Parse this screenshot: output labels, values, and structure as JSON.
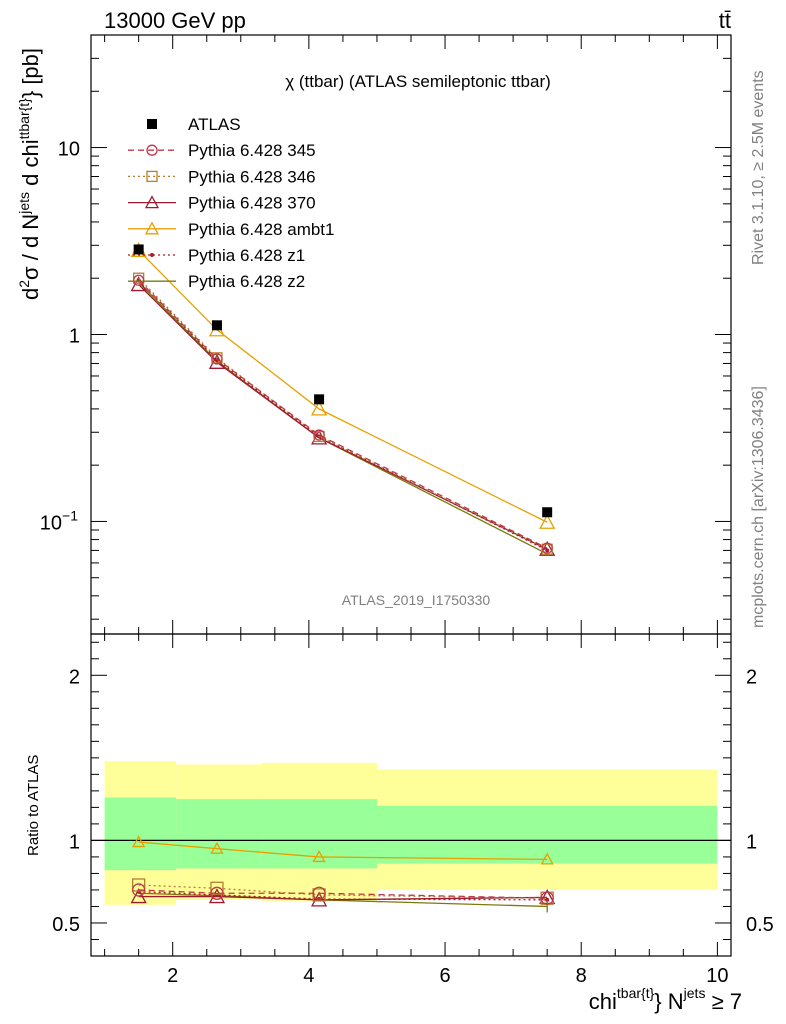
{
  "header": {
    "energy_label": "13000 GeV pp",
    "process_label": "tt̄"
  },
  "side_text": {
    "rivet": "Rivet 3.1.10, ≥ 2.5M events",
    "mcplots": "mcplots.cern.ch [arXiv:1306.3436]"
  },
  "chart_data": [
    {
      "type": "scatter",
      "panel": "main",
      "title": "χ (ttbar) (ATLAS semileptonic ttbar)",
      "ylabel": "d²σ / d N^jets d chi^ttbar{t} [pb]",
      "analysis_id": "ATLAS_2019_I1750330",
      "xlim": [
        0.8,
        10.2
      ],
      "ylim": [
        0.025,
        40
      ],
      "log_y": true,
      "yticks": [
        {
          "value": 0.1,
          "base": "10",
          "exp": "−1"
        },
        {
          "value": 1,
          "label": "1"
        },
        {
          "value": 10,
          "label": "10"
        }
      ],
      "legend_placement": "top-left",
      "x": [
        1.5,
        2.65,
        4.15,
        7.5
      ],
      "series": [
        {
          "name": "ATLAS",
          "color": "#000000",
          "marker": "filled-square",
          "line": "none",
          "values": [
            2.85,
            1.12,
            0.45,
            0.112
          ]
        },
        {
          "name": "Pythia 6.428 345",
          "color": "#c0394b",
          "marker": "open-circle",
          "line": "dashed",
          "values": [
            1.95,
            0.74,
            0.29,
            0.072
          ]
        },
        {
          "name": "Pythia 6.428 346",
          "color": "#b57f2e",
          "marker": "open-square",
          "line": "dotted",
          "values": [
            2.0,
            0.75,
            0.285,
            0.071
          ]
        },
        {
          "name": "Pythia 6.428 370",
          "color": "#9b1b30",
          "marker": "open-triangle",
          "line": "solid",
          "values": [
            1.85,
            0.71,
            0.28,
            0.071
          ]
        },
        {
          "name": "Pythia 6.428 ambt1",
          "color": "#e8a000",
          "marker": "open-triangle",
          "line": "solid",
          "values": [
            2.82,
            1.06,
            0.4,
            0.099
          ]
        },
        {
          "name": "Pythia 6.428 z1",
          "color": "#b2182b",
          "marker": "dot",
          "line": "dotted",
          "values": [
            1.95,
            0.73,
            0.285,
            0.07
          ]
        },
        {
          "name": "Pythia 6.428 z2",
          "color": "#7a7a10",
          "marker": "none",
          "line": "solid",
          "values": [
            1.9,
            0.72,
            0.28,
            0.067
          ]
        }
      ]
    },
    {
      "type": "line",
      "panel": "ratio",
      "ylabel": "Ratio to ATLAS",
      "xlabel": "chi^tbar{t} N^jets ≥ 7",
      "xlim": [
        0.8,
        10.2
      ],
      "ylim": [
        0.3,
        2.25
      ],
      "yticks": [
        0.5,
        1,
        2
      ],
      "xticks": [
        2,
        4,
        6,
        8,
        10
      ],
      "bands": {
        "bin_edges": [
          1.0,
          2.05,
          3.3,
          5.0,
          10.0
        ],
        "yellow_low": [
          0.61,
          0.64,
          0.63,
          0.7
        ],
        "yellow_high": [
          1.48,
          1.46,
          1.47,
          1.43
        ],
        "green_low": [
          0.82,
          0.83,
          0.83,
          0.86
        ],
        "green_high": [
          1.26,
          1.25,
          1.25,
          1.21
        ]
      },
      "x": [
        1.5,
        2.65,
        4.15,
        7.5
      ],
      "series": [
        {
          "name": "Pythia 6.428 345",
          "color": "#c0394b",
          "values": [
            0.7,
            0.68,
            0.68,
            0.65
          ]
        },
        {
          "name": "Pythia 6.428 346",
          "color": "#b57f2e",
          "values": [
            0.73,
            0.71,
            0.67,
            0.65
          ]
        },
        {
          "name": "Pythia 6.428 370",
          "color": "#9b1b30",
          "values": [
            0.66,
            0.66,
            0.64,
            0.655
          ]
        },
        {
          "name": "Pythia 6.428 ambt1",
          "color": "#e8a000",
          "values": [
            0.99,
            0.95,
            0.9,
            0.885
          ]
        },
        {
          "name": "Pythia 6.428 z1",
          "color": "#b2182b",
          "values": [
            0.69,
            0.67,
            0.645,
            0.64
          ]
        },
        {
          "name": "Pythia 6.428 z2",
          "color": "#7a7a10",
          "values": [
            0.68,
            0.665,
            0.64,
            0.6
          ]
        }
      ]
    }
  ]
}
